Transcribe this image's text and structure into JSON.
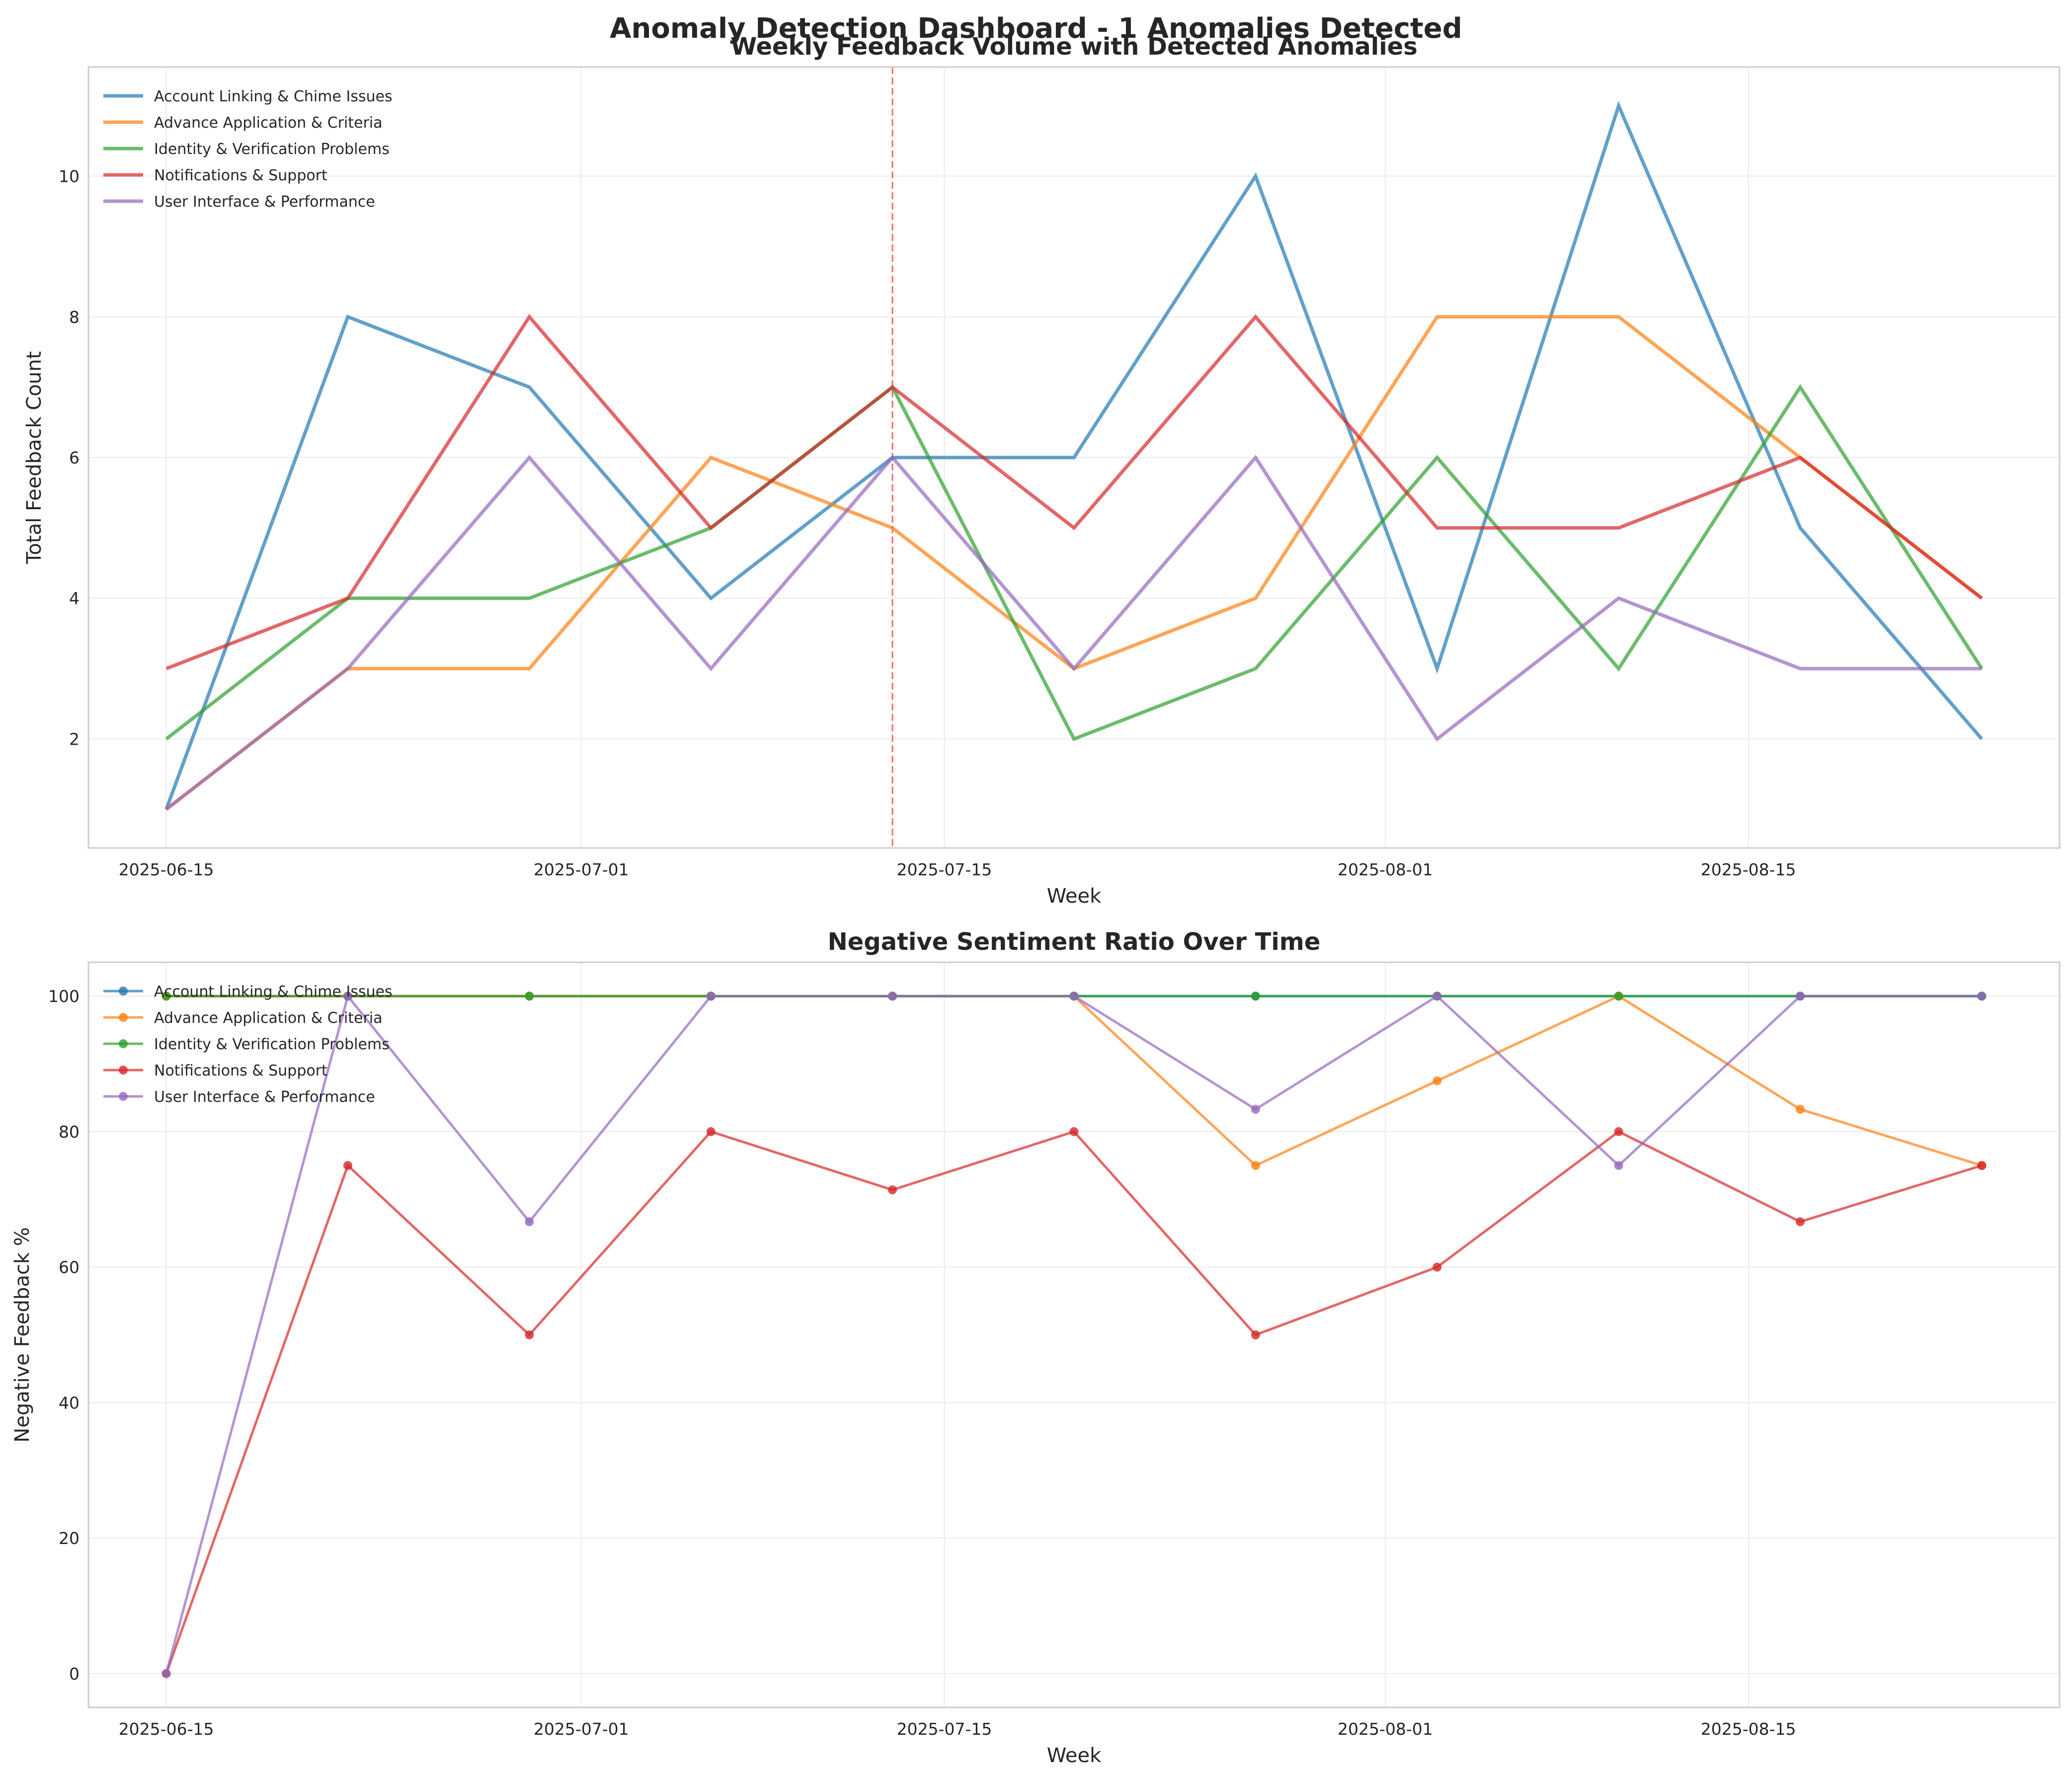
{
  "title": "Anomaly Detection Dashboard - 1 Anomalies Detected",
  "colors": {
    "Account Linking & Chime Issues": "#1f77b4",
    "Advance Application & Criteria": "#ff7f0e",
    "Identity & Verification Problems": "#2ca02c",
    "Notifications & Support": "#d62728",
    "User Interface & Performance": "#9467bd",
    "anomaly_line": "#ff0000",
    "grid": "#ebebeb",
    "spine": "#cccccc"
  },
  "chart_data": [
    {
      "type": "line",
      "title": "Weekly Feedback Volume with Detected Anomalies",
      "xlabel": "Week",
      "ylabel": "Total Feedback Count",
      "x": [
        "2025-06-15",
        "2025-06-22",
        "2025-06-29",
        "2025-07-06",
        "2025-07-13",
        "2025-07-20",
        "2025-07-27",
        "2025-08-03",
        "2025-08-10",
        "2025-08-17",
        "2025-08-24"
      ],
      "xlim": [
        "2025-06-12",
        "2025-08-27"
      ],
      "ylim": [
        0.45,
        11.55
      ],
      "xticks": [
        "2025-06-15",
        "2025-07-01",
        "2025-07-15",
        "2025-08-01",
        "2025-08-15"
      ],
      "yticks": [
        2,
        4,
        6,
        8,
        10
      ],
      "grid": true,
      "legend": "top-left",
      "markers": false,
      "anomalies": [
        "2025-07-13"
      ],
      "series": [
        {
          "name": "Account Linking & Chime Issues",
          "values": [
            1,
            8,
            7,
            4,
            6,
            6,
            10,
            3,
            11,
            5,
            2
          ]
        },
        {
          "name": "Advance Application & Criteria",
          "values": [
            1,
            3,
            3,
            6,
            5,
            3,
            4,
            8,
            8,
            6,
            4
          ]
        },
        {
          "name": "Identity & Verification Problems",
          "values": [
            2,
            4,
            4,
            5,
            7,
            2,
            3,
            6,
            3,
            7,
            3
          ]
        },
        {
          "name": "Notifications & Support",
          "values": [
            3,
            4,
            8,
            5,
            7,
            5,
            8,
            5,
            5,
            6,
            4
          ]
        },
        {
          "name": "User Interface & Performance",
          "values": [
            1,
            3,
            6,
            3,
            6,
            3,
            6,
            2,
            4,
            3,
            3
          ]
        }
      ]
    },
    {
      "type": "line",
      "title": "Negative Sentiment Ratio Over Time",
      "xlabel": "Week",
      "ylabel": "Negative Feedback %",
      "x": [
        "2025-06-15",
        "2025-06-22",
        "2025-06-29",
        "2025-07-06",
        "2025-07-13",
        "2025-07-20",
        "2025-07-27",
        "2025-08-03",
        "2025-08-10",
        "2025-08-17",
        "2025-08-24"
      ],
      "xlim": [
        "2025-06-12",
        "2025-08-27"
      ],
      "ylim": [
        -5,
        105
      ],
      "xticks": [
        "2025-06-15",
        "2025-07-01",
        "2025-07-15",
        "2025-08-01",
        "2025-08-15"
      ],
      "yticks": [
        0,
        20,
        40,
        60,
        80,
        100
      ],
      "grid": true,
      "legend": "top-left",
      "markers": true,
      "series": [
        {
          "name": "Account Linking & Chime Issues",
          "values": [
            100,
            100,
            100,
            100,
            100,
            100,
            100,
            100,
            100,
            100,
            100
          ]
        },
        {
          "name": "Advance Application & Criteria",
          "values": [
            100,
            100,
            100,
            100,
            100,
            100,
            75,
            87.5,
            100,
            83.3,
            75
          ]
        },
        {
          "name": "Identity & Verification Problems",
          "values": [
            100,
            100,
            100,
            100,
            100,
            100,
            100,
            100,
            100,
            100,
            100
          ]
        },
        {
          "name": "Notifications & Support",
          "values": [
            0,
            75,
            50,
            80,
            71.4,
            80,
            50,
            60,
            80,
            66.7,
            75
          ]
        },
        {
          "name": "User Interface & Performance",
          "values": [
            0,
            100,
            66.7,
            100,
            100,
            100,
            83.3,
            100,
            75,
            100,
            100
          ]
        }
      ]
    }
  ]
}
